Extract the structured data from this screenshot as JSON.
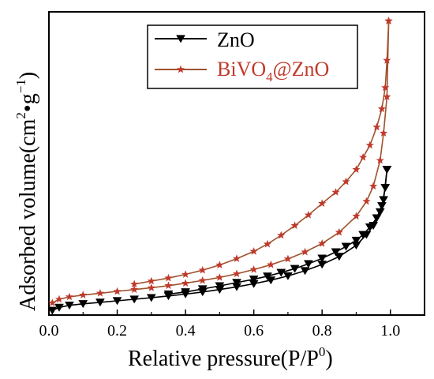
{
  "chart_data": {
    "type": "line",
    "xlabel_main": "Relative pressure(P/P",
    "xlabel_sup": "0",
    "xlabel_end": ")",
    "ylabel_main": "Adsorbed volume(cm",
    "ylabel_sup1": "2",
    "ylabel_mid": "•g",
    "ylabel_sup2": "−1",
    "ylabel_end": ")",
    "xlim": [
      0.0,
      1.1
    ],
    "ylim": [
      0,
      100
    ],
    "xticks": [
      "0.0",
      "0.2",
      "0.4",
      "0.6",
      "0.8",
      "1.0"
    ],
    "legend_position": "top-center",
    "grid": false,
    "series": [
      {
        "name": "ZnO",
        "legend_main": "ZnO",
        "color": "#000000",
        "marker": "triangle-down",
        "adsorption": [
          [
            0.01,
            1.5
          ],
          [
            0.03,
            2.5
          ],
          [
            0.06,
            3.2
          ],
          [
            0.1,
            3.7
          ],
          [
            0.15,
            4.2
          ],
          [
            0.2,
            4.7
          ],
          [
            0.25,
            5.2
          ],
          [
            0.3,
            5.7
          ],
          [
            0.35,
            6.3
          ],
          [
            0.4,
            6.9
          ],
          [
            0.45,
            7.6
          ],
          [
            0.5,
            8.4
          ],
          [
            0.55,
            9.3
          ],
          [
            0.6,
            10.3
          ],
          [
            0.65,
            11.5
          ],
          [
            0.7,
            12.9
          ],
          [
            0.75,
            14.6
          ],
          [
            0.8,
            16.7
          ],
          [
            0.85,
            19.3
          ],
          [
            0.9,
            23.0
          ],
          [
            0.93,
            26.5
          ],
          [
            0.95,
            29.5
          ],
          [
            0.97,
            34.0
          ],
          [
            0.98,
            38.0
          ],
          [
            0.99,
            48.0
          ]
        ],
        "desorption": [
          [
            0.99,
            48.0
          ],
          [
            0.985,
            42.0
          ],
          [
            0.975,
            36.0
          ],
          [
            0.96,
            32.0
          ],
          [
            0.94,
            29.0
          ],
          [
            0.92,
            26.5
          ],
          [
            0.9,
            24.6
          ],
          [
            0.87,
            22.6
          ],
          [
            0.84,
            20.8
          ],
          [
            0.8,
            18.7
          ],
          [
            0.76,
            16.9
          ],
          [
            0.72,
            15.3
          ],
          [
            0.68,
            14.0
          ],
          [
            0.64,
            12.8
          ],
          [
            0.6,
            11.8
          ],
          [
            0.55,
            10.7
          ],
          [
            0.5,
            9.6
          ],
          [
            0.45,
            8.6
          ],
          [
            0.4,
            7.6
          ],
          [
            0.35,
            6.9
          ]
        ]
      },
      {
        "name": "BiVO4@ZnO",
        "legend_main": "BiVO",
        "legend_sub": "4",
        "legend_end": "@ZnO",
        "color": "#c0392b",
        "marker": "star",
        "adsorption": [
          [
            0.01,
            4.0
          ],
          [
            0.03,
            5.2
          ],
          [
            0.06,
            6.0
          ],
          [
            0.1,
            6.6
          ],
          [
            0.15,
            7.2
          ],
          [
            0.2,
            7.8
          ],
          [
            0.25,
            8.4
          ],
          [
            0.3,
            9.0
          ],
          [
            0.35,
            9.7
          ],
          [
            0.4,
            10.5
          ],
          [
            0.45,
            11.4
          ],
          [
            0.5,
            12.4
          ],
          [
            0.55,
            13.6
          ],
          [
            0.6,
            15.0
          ],
          [
            0.65,
            16.6
          ],
          [
            0.7,
            18.5
          ],
          [
            0.75,
            20.8
          ],
          [
            0.8,
            23.6
          ],
          [
            0.85,
            27.3
          ],
          [
            0.9,
            32.6
          ],
          [
            0.93,
            37.5
          ],
          [
            0.95,
            42.5
          ],
          [
            0.97,
            51.0
          ],
          [
            0.98,
            60.0
          ],
          [
            0.99,
            72.0
          ],
          [
            0.995,
            97.0
          ]
        ],
        "desorption": [
          [
            0.995,
            97.0
          ],
          [
            0.99,
            84.0
          ],
          [
            0.985,
            75.0
          ],
          [
            0.975,
            68.0
          ],
          [
            0.96,
            62.0
          ],
          [
            0.94,
            56.0
          ],
          [
            0.92,
            52.0
          ],
          [
            0.9,
            48.0
          ],
          [
            0.87,
            44.0
          ],
          [
            0.84,
            40.5
          ],
          [
            0.8,
            36.8
          ],
          [
            0.76,
            33.0
          ],
          [
            0.72,
            29.5
          ],
          [
            0.68,
            26.3
          ],
          [
            0.64,
            23.4
          ],
          [
            0.6,
            21.0
          ],
          [
            0.55,
            18.6
          ],
          [
            0.5,
            16.5
          ],
          [
            0.45,
            14.8
          ],
          [
            0.4,
            13.4
          ],
          [
            0.35,
            12.2
          ],
          [
            0.3,
            11.2
          ],
          [
            0.25,
            10.2
          ]
        ]
      }
    ]
  }
}
